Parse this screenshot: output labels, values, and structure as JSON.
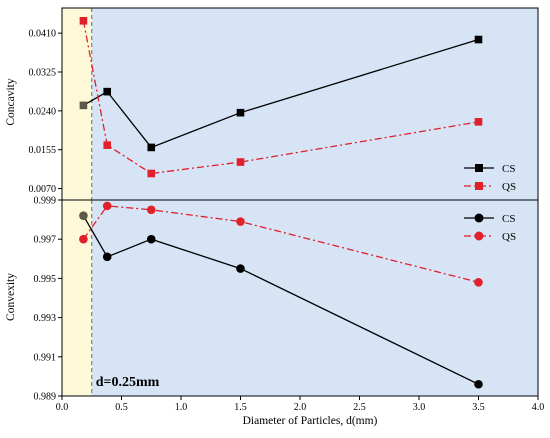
{
  "chart_data": [
    {
      "id": "concavity",
      "type": "line",
      "title": "",
      "xlabel": "",
      "ylabel": "Concavity",
      "x": [
        0.18,
        0.38,
        0.75,
        1.5,
        3.5
      ],
      "xlim": [
        0.0,
        4.0
      ],
      "ylim": [
        0.0045,
        0.0465
      ],
      "yticks": [
        0.007,
        0.0155,
        0.024,
        0.0325,
        0.041
      ],
      "ytick_labels": [
        "0.0070",
        "0.0155",
        "0.0240",
        "0.0325",
        "0.0410"
      ],
      "series": [
        {
          "name": "CS",
          "color": "#000000",
          "marker": "square",
          "dash": "solid",
          "values": [
            0.0252,
            0.0282,
            0.016,
            0.0236,
            0.0396
          ]
        },
        {
          "name": "QS",
          "color": "#e0202a",
          "marker": "square",
          "dash": "dash-dot",
          "values": [
            0.0437,
            0.0165,
            0.0103,
            0.0128,
            0.0216
          ]
        }
      ],
      "legend_position": "lower-right",
      "grid": false
    },
    {
      "id": "convexity",
      "type": "line",
      "title": "",
      "xlabel": "Diameter of Particles, d(mm)",
      "ylabel": "Convexity",
      "x": [
        0.18,
        0.38,
        0.75,
        1.5,
        3.5
      ],
      "xlim": [
        0.0,
        4.0
      ],
      "ylim": [
        0.989,
        0.999
      ],
      "yticks": [
        0.989,
        0.991,
        0.993,
        0.995,
        0.997,
        0.999
      ],
      "ytick_labels": [
        "0.989",
        "0.991",
        "0.993",
        "0.995",
        "0.997",
        "0.999"
      ],
      "xticks": [
        0.0,
        0.5,
        1.0,
        1.5,
        2.0,
        2.5,
        3.0,
        3.5,
        4.0
      ],
      "xtick_labels": [
        "0.0",
        "0.5",
        "1.0",
        "1.5",
        "2.0",
        "2.5",
        "3.0",
        "3.5",
        "4.0"
      ],
      "series": [
        {
          "name": "CS",
          "color": "#000000",
          "marker": "circle",
          "dash": "solid",
          "values": [
            0.9982,
            0.9961,
            0.997,
            0.9955,
            0.9896
          ]
        },
        {
          "name": "QS",
          "color": "#e0202a",
          "marker": "circle",
          "dash": "dash-dot",
          "values": [
            0.997,
            0.9987,
            0.9985,
            0.9979,
            0.9948
          ]
        }
      ],
      "legend_position": "upper-right",
      "grid": false
    }
  ],
  "threshold": {
    "x": 0.25,
    "label": "d=0.25mm"
  },
  "colors": {
    "left_region": "#fdf8d8",
    "right_region": "#d6e4f6",
    "cs": "#000000",
    "qs": "#e0202a",
    "overlap_marker": "#5a5a48"
  }
}
